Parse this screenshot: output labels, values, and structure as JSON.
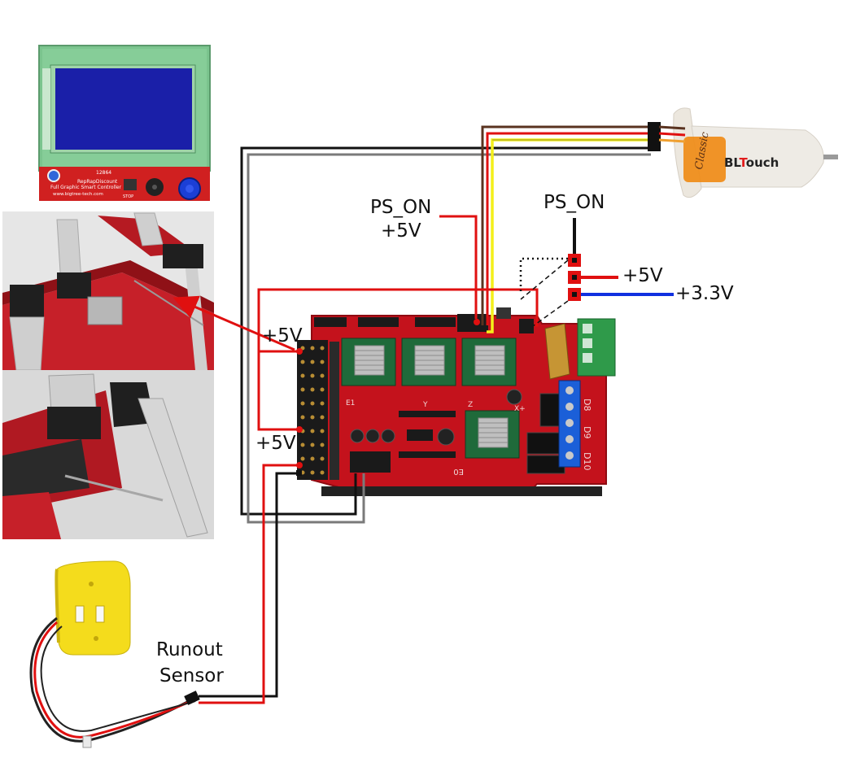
{
  "labels": {
    "ps_on_left_line1": "PS_ON",
    "ps_on_left_line2": "+5V",
    "ps_on_right": "PS_ON",
    "plus5v_right": "+5V",
    "plus3v3_right": "+3.3V",
    "plus5v_left_top": "+5V",
    "plus5v_left_bottom": "+5V",
    "runout_line1": "Runout",
    "runout_line2": "Sensor"
  },
  "lcd": {
    "model": "12864",
    "title_line1": "RepRapDiscount",
    "title_line2": "Full Graphic Smart Controller",
    "url": "www.bigtree-tech.com",
    "stop_label": "STOP"
  },
  "bltouch": {
    "brand_prefix": "BL",
    "brand_t": "T",
    "brand_suffix": "ouch",
    "side_text": "Classic"
  },
  "board": {
    "silk_labels": [
      "X+",
      "D8",
      "D9",
      "D10",
      "E0",
      "E1",
      "Y",
      "Z"
    ]
  },
  "colors": {
    "wire_red": "#e01010",
    "wire_black": "#111111",
    "wire_gray": "#777777",
    "wire_blue": "#1030e0",
    "wire_yellow": "#f4ef1a",
    "wire_brown": "#5a3320",
    "board_red": "#c4121c",
    "sensor_yellow": "#f4dc1c",
    "lcd_screen": "#1a1fa8",
    "lcd_frame": "#76c08a"
  }
}
